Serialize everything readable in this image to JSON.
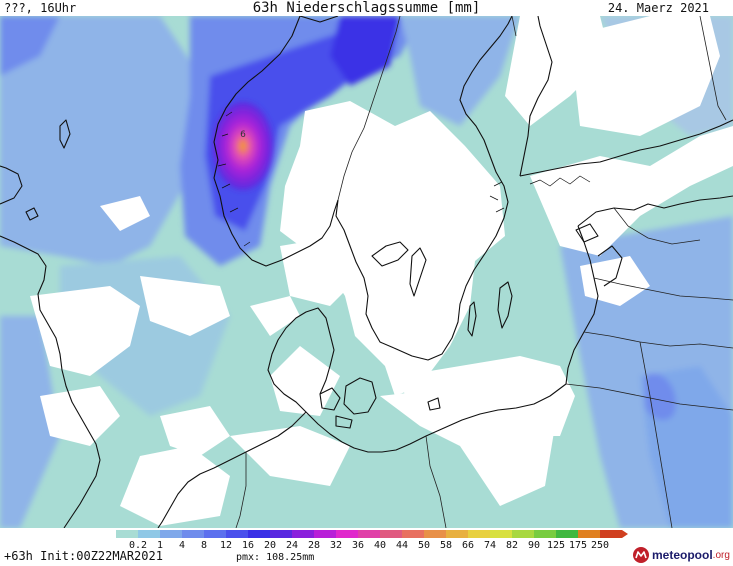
{
  "header": {
    "left": "???, 16Uhr",
    "title": "63h Niederschlagssumme [mm]",
    "date": "24. Maerz 2021"
  },
  "footer": {
    "left": "+63h Init:00Z22MAR2021",
    "pmx": "pmx: 108.25mm"
  },
  "logo": {
    "name": "meteopool",
    "tld": ".org"
  },
  "map": {
    "peak_label": "6"
  },
  "legend": {
    "ticks": [
      "0.2",
      "1",
      "4",
      "8",
      "12",
      "16",
      "20",
      "24",
      "28",
      "32",
      "36",
      "40",
      "44",
      "50",
      "58",
      "66",
      "74",
      "82",
      "90",
      "125",
      "175",
      "250"
    ],
    "colors": [
      "#a8dcd4",
      "#8fc8e6",
      "#7fa8ea",
      "#6f8cec",
      "#5c70ee",
      "#4a50ec",
      "#3a30e6",
      "#5a28e0",
      "#8a20dc",
      "#b820d8",
      "#e028cc",
      "#e040a8",
      "#e05a80",
      "#e87060",
      "#e89048",
      "#e8b040",
      "#e8d040",
      "#d8e040",
      "#a8d840",
      "#78cc40",
      "#40b840",
      "#e08020",
      "#d04020"
    ],
    "palette": {
      "light_teal": "#a8dcd4",
      "pale_blue": "#7fa8ea",
      "medium_blue": "#5c70ee",
      "deep_blue": "#3a30e6",
      "magenta": "#e028cc",
      "dry": "#ffffff"
    }
  },
  "icons": {
    "logo_mark": "meteopool-logo-icon"
  }
}
